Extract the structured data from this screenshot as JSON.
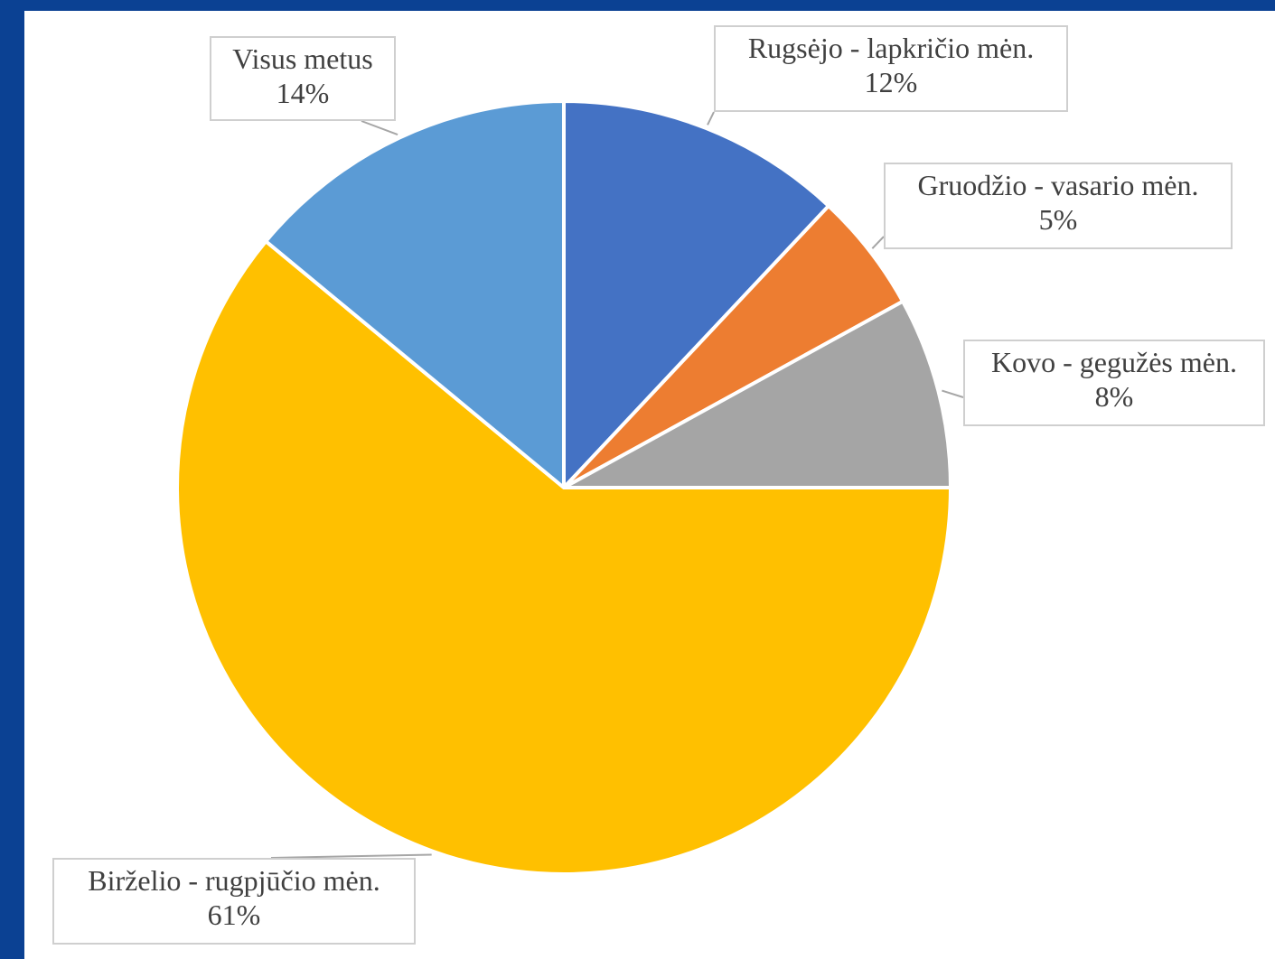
{
  "chart_data": {
    "type": "pie",
    "slices": [
      {
        "label": "Rugsėjo - lapkričio mėn.",
        "value": 12,
        "value_label": "12%",
        "color": "#4472c4"
      },
      {
        "label": "Gruodžio - vasario mėn.",
        "value": 5,
        "value_label": "5%",
        "color": "#ed7d31"
      },
      {
        "label": "Kovo - gegužės mėn.",
        "value": 8,
        "value_label": "8%",
        "color": "#a5a5a5"
      },
      {
        "label": "Birželio - rugpjūčio mėn.",
        "value": 61,
        "value_label": "61%",
        "color": "#ffc000"
      },
      {
        "label": "Visus metus",
        "value": 14,
        "value_label": "14%",
        "color": "#5b9bd5"
      }
    ],
    "start_angle_deg": 0,
    "direction": "clockwise",
    "data_labels": "outside with leader lines"
  },
  "colors": {
    "frame": "#0b4193",
    "label_border": "#cfcfcf",
    "label_text": "#404040",
    "leader_line": "#a6a6a6"
  }
}
